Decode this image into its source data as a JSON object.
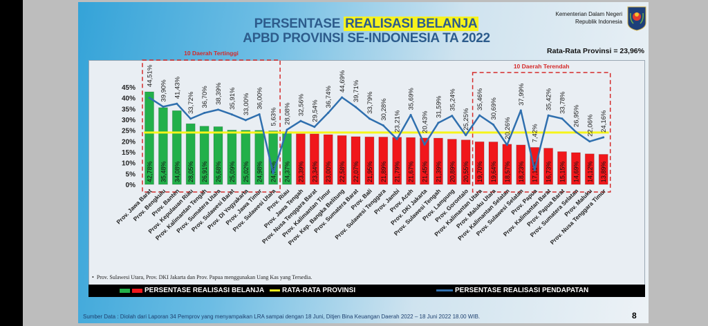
{
  "header": {
    "title_prefix": "PERSENTASE ",
    "title_highlight": "REALISASI BELANJA",
    "title_line2": "APBD PROVINSI SE-INDONESIA TA 2022",
    "ministry_line1": "Kementerian Dalam Negeri",
    "ministry_line2": "Republik Indonesia",
    "average_text": "Rata-Rata Provinsi = 23,96%"
  },
  "footnote": "Prov. Sulawesi Utara, Prov. DKI Jakarta dan Prov. Papua menggunakan Uang Kas yang Tersedia.",
  "legend": {
    "bars": "PERSENTASE REALISASI BELANJA",
    "avg": "RATA-RATA PROVINSI",
    "line": "PERSENTASE REALISASI PENDAPATAN"
  },
  "source": "Sumber Data : Diolah dari Laporan 34 Pemprov yang menyampaikan LRA sampai dengan 18 Juni, Ditjen Bina Keuangan Daerah 2022 – 18 Juni 2022  18.00 WIB.",
  "page_number": "8",
  "colors": {
    "top": "#22b04a",
    "other": "#f0171b",
    "average": "#f5f51a",
    "line": "#2f6fae",
    "box": "#d42a2a",
    "title": "#2d5c8c"
  },
  "chart_data": {
    "type": "bar",
    "ylim": [
      0,
      45
    ],
    "line_axis_max": 50,
    "yticks": [
      "0%",
      "5%",
      "10%",
      "15%",
      "20%",
      "25%",
      "30%",
      "35%",
      "40%",
      "45%"
    ],
    "grid": false,
    "legend_position": "bottom",
    "average": 23.96,
    "box_top_label": "10 Daerah Tertinggi",
    "box_bottom_label": "10 Daerah Terendah",
    "categories": [
      "Prov. Jawa Barat",
      "Prov. Bengkulu",
      "Prov. Banten",
      "Prov. Kepulauan Riau",
      "Prov. Kalimantan Tengah",
      "Prov. Sumatera Utara",
      "Prov. Sulawesi Barat",
      "Prov. DI Yogyakarta",
      "Prov. Jawa Timur",
      "Prov. Sulawesi Utara",
      "Prov. Riau",
      "Prov. Jawa Tengah",
      "Prov. Nusa Tenggara Barat",
      "Prov. Kalimantan Timur",
      "Prov. Kep. Bangka Belitung",
      "Prov. Sumatera Barat",
      "Prov. Bali",
      "Prov. Sulawesi Tenggara",
      "Prov. Jambi",
      "Prov. Aceh",
      "Prov. DKI Jakarta",
      "Prov. Sulawesi Tengah",
      "Prov. Lampung",
      "Prov. Gorontalo",
      "Prov. Kalimantan Utara",
      "Prov. Maluku Utara",
      "Prov. Kalimantan Selatan",
      "Prov. Sulawesi Selatan",
      "Prov. Papua",
      "Prov. Kalimantan Barat",
      "Prov. Papua Barat",
      "Prov. Sumatera Selatan",
      "Prov. Maluku",
      "Prov. Nusa Tenggara Timur"
    ],
    "series": [
      {
        "name": "PERSENTASE REALISASI BELANJA",
        "type": "bar",
        "values": [
          42.78,
          35.48,
          34.08,
          28.05,
          26.91,
          26.68,
          25.09,
          25.02,
          24.98,
          24.75,
          24.37,
          23.39,
          23.34,
          23.0,
          22.58,
          22.07,
          21.95,
          21.89,
          21.79,
          21.67,
          21.45,
          21.39,
          20.89,
          20.55,
          19.7,
          19.64,
          18.57,
          18.23,
          17.11,
          16.73,
          15.15,
          14.69,
          14.12,
          13.89
        ],
        "labels": [
          "42,78%",
          "35,48%",
          "34,08%",
          "28,05%",
          "26,91%",
          "26,68%",
          "25,09%",
          "25,02%",
          "24,98%",
          "24,75%",
          "24,37%",
          "23,39%",
          "23,34%",
          "23,00%",
          "22,58%",
          "22,07%",
          "21,95%",
          "21,89%",
          "21,79%",
          "21,67%",
          "21,45%",
          "21,39%",
          "20,89%",
          "20,55%",
          "19,70%",
          "19,64%",
          "18,57%",
          "18,23%",
          "17,11%",
          "16,73%",
          "15,15%",
          "14,69%",
          "14,12%",
          "13,89%"
        ]
      },
      {
        "name": "PERSENTASE REALISASI PENDAPATAN",
        "type": "line",
        "values": [
          44.51,
          39.9,
          41.43,
          33.72,
          36.7,
          38.39,
          35.91,
          33.0,
          36.0,
          5.63,
          28.08,
          32.56,
          29.54,
          36.74,
          44.69,
          39.71,
          33.79,
          30.28,
          23.21,
          35.69,
          20.43,
          31.59,
          35.24,
          25.25,
          35.46,
          30.69,
          20.26,
          37.99,
          7.42,
          35.42,
          33.78,
          26.95,
          22.06,
          24.16
        ],
        "labels": [
          "44,51%",
          "39,90%",
          "41,43%",
          "33,72%",
          "36,70%",
          "38,39%",
          "35,91%",
          "33,00%",
          "36,00%",
          "5,63%",
          "28,08%",
          "32,56%",
          "29,54%",
          "36,74%",
          "44,69%",
          "39,71%",
          "33,79%",
          "30,28%",
          "23,21%",
          "35,69%",
          "20,43%",
          "31,59%",
          "35,24%",
          "25,25%",
          "35,46%",
          "30,69%",
          "20,26%",
          "37,99%",
          "7,42%",
          "35,42%",
          "33,78%",
          "26,95%",
          "22,06%",
          "24,16%"
        ]
      },
      {
        "name": "RATA-RATA PROVINSI",
        "type": "line",
        "value": 23.96
      }
    ]
  }
}
